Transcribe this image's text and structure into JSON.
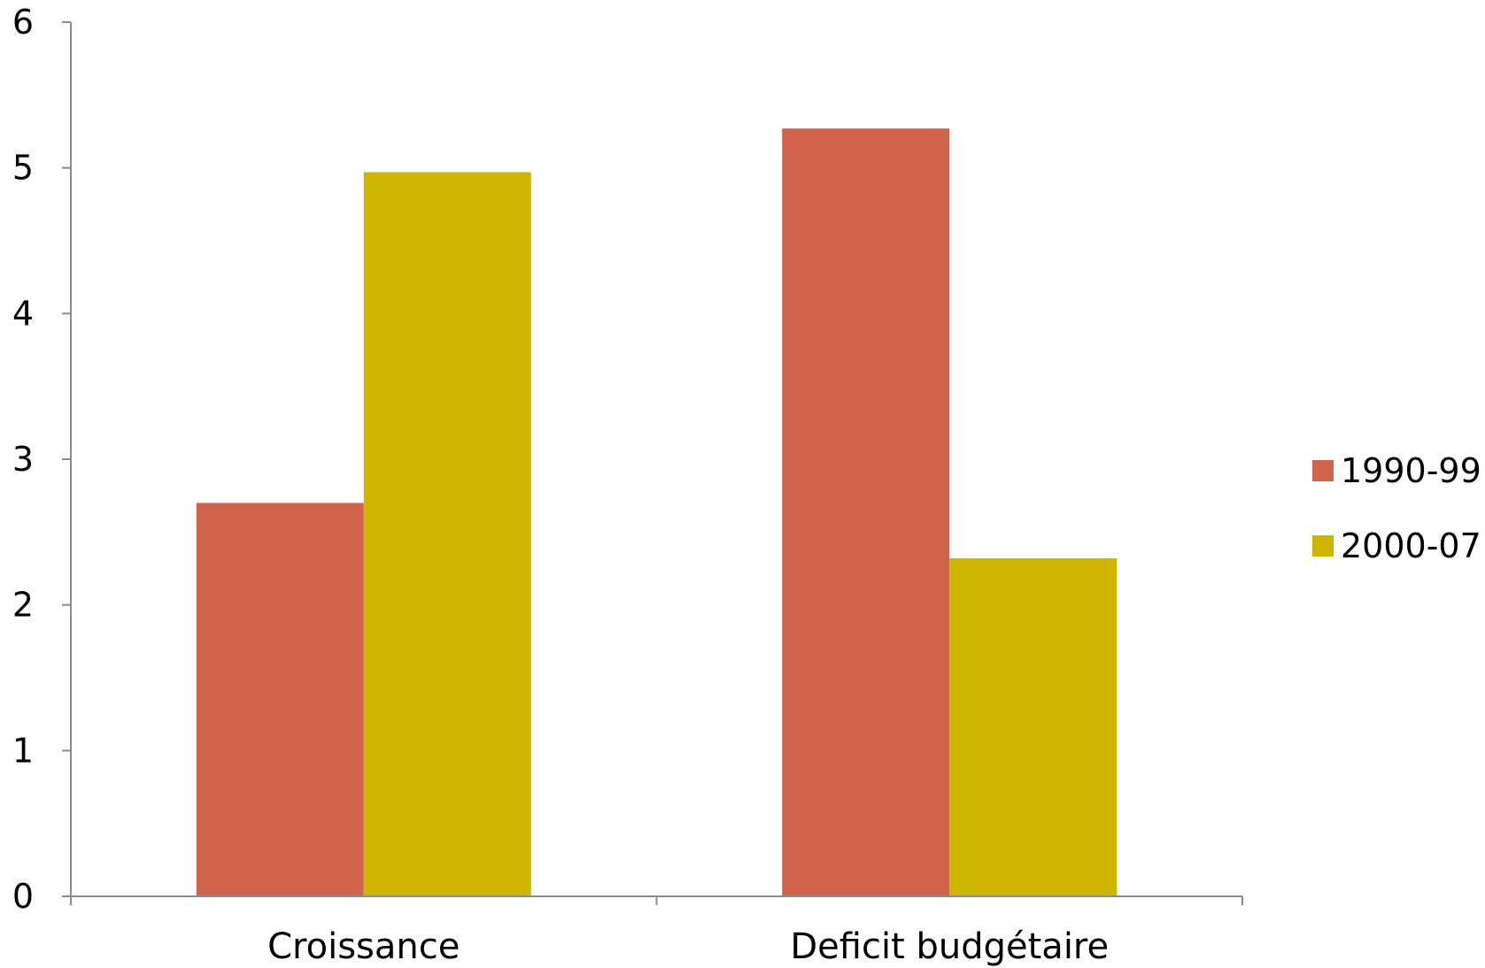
{
  "chart_data": {
    "type": "bar",
    "categories": [
      "Croissance",
      "Deficit budgétaire"
    ],
    "series": [
      {
        "name": "1990-99",
        "values": [
          2.7,
          5.27
        ]
      },
      {
        "name": "2000-07",
        "values": [
          4.97,
          2.32
        ]
      }
    ],
    "ylim": [
      0,
      6
    ],
    "yticks": [
      "0",
      "1",
      "2",
      "3",
      "4",
      "5",
      "6"
    ],
    "title": "",
    "xlabel": "",
    "ylabel": "",
    "grid": false,
    "legend_position": "right",
    "colors": [
      "#d2634b",
      "#cdb500"
    ],
    "axis_color": "#8c8c8c"
  }
}
